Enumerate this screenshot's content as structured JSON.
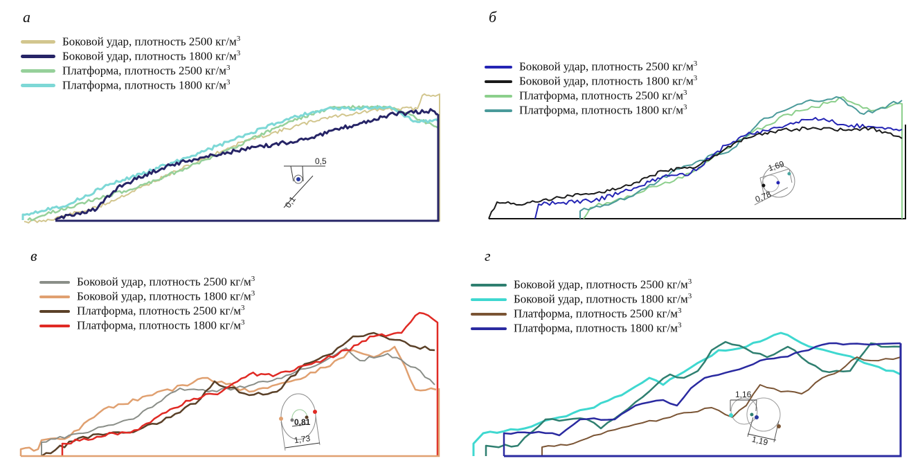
{
  "figure": {
    "unit_suffix": "3",
    "panels": [
      {
        "id": "a",
        "letter": "а",
        "legend": [
          {
            "label": "Боковой удар, плотность 2500 кг/м",
            "color": "#d2c68e"
          },
          {
            "label": "Боковой удар, плотность 1800 кг/м",
            "color": "#262466"
          },
          {
            "label": "Платформа, плотность 2500 кг/м",
            "color": "#96d09a"
          },
          {
            "label": "Платформа, плотность 1800 кг/м",
            "color": "#7dd8d6"
          }
        ],
        "annotations": [
          "0,5",
          "0,1"
        ]
      },
      {
        "id": "b",
        "letter": "б",
        "legend": [
          {
            "label": "Боковой удар, плотность 2500 кг/м",
            "color": "#2424b4"
          },
          {
            "label": "Боковой удар, плотность 1800 кг/м",
            "color": "#1a1a1a"
          },
          {
            "label": "Платформа, плотность 2500 кг/м",
            "color": "#8ccf8c"
          },
          {
            "label": "Платформа, плотность 1800 кг/м",
            "color": "#4a9a9a"
          }
        ],
        "annotations": [
          "1,69",
          "0,78"
        ]
      },
      {
        "id": "v",
        "letter": "в",
        "legend": [
          {
            "label": "Боковой удар, плотность 2500 кг/м",
            "color": "#8a8e88"
          },
          {
            "label": "Боковой удар, плотность 1800 кг/м",
            "color": "#e0a070"
          },
          {
            "label": "Платформа, плотность 2500 кг/м",
            "color": "#5a4028"
          },
          {
            "label": "Платформа, плотность 1800 кг/м",
            "color": "#e02a24"
          }
        ],
        "annotations": [
          "0,81",
          "1,73"
        ]
      },
      {
        "id": "g",
        "letter": "г",
        "legend": [
          {
            "label": "Боковой удар, плотность 2500 кг/м",
            "color": "#2f7f70"
          },
          {
            "label": "Боковой удар, плотность 1800 кг/м",
            "color": "#3fd8d0"
          },
          {
            "label": "Платформа, плотность 2500 кг/м",
            "color": "#7a5434"
          },
          {
            "label": "Платформа, плотность 1800 кг/м",
            "color": "#2a2aa0"
          }
        ],
        "annotations": [
          "1,16",
          "1,19"
        ]
      }
    ]
  }
}
